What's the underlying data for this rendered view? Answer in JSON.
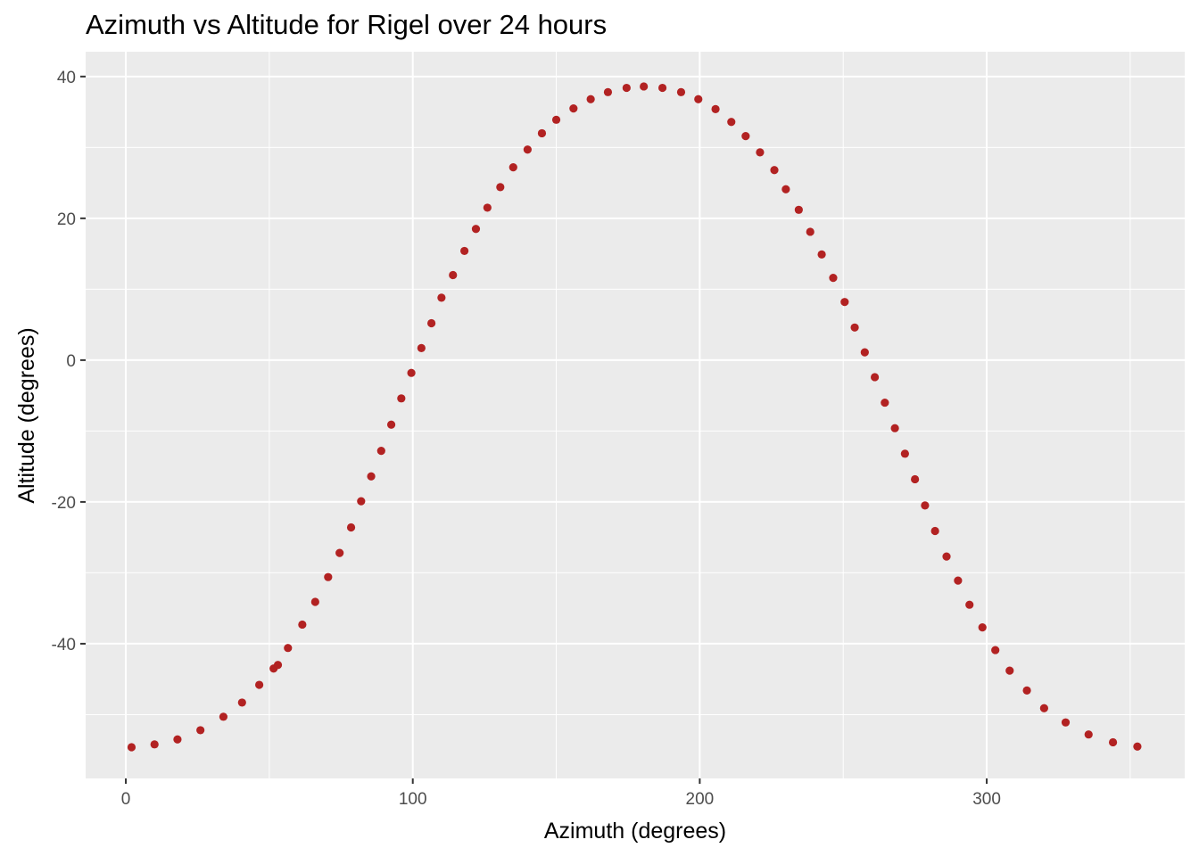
{
  "chart_data": {
    "type": "scatter",
    "title": "Azimuth vs Altitude for Rigel over 24 hours",
    "xlabel": "Azimuth (degrees)",
    "ylabel": "Altitude (degrees)",
    "xlim": [
      -14,
      369
    ],
    "ylim": [
      -59,
      43.5
    ],
    "x_ticks": [
      0,
      100,
      200,
      300
    ],
    "y_ticks": [
      -40,
      -20,
      0,
      20,
      40
    ],
    "x_tick_labels": [
      "0",
      "100",
      "200",
      "300"
    ],
    "y_tick_labels": [
      "-40",
      "-20",
      "0",
      "20",
      "40"
    ],
    "grid": true,
    "legend": "none",
    "colors": {
      "panel": "#ebebeb",
      "grid": "#ffffff",
      "point": "#b22222"
    },
    "points": [
      [
        2,
        -54.6
      ],
      [
        10,
        -54.2
      ],
      [
        18,
        -53.5
      ],
      [
        26,
        -52.2
      ],
      [
        34,
        -50.3
      ],
      [
        40.5,
        -48.3
      ],
      [
        46.5,
        -45.8
      ],
      [
        51.5,
        -43.5
      ],
      [
        53,
        -43.0
      ],
      [
        56.5,
        -40.6
      ],
      [
        61.5,
        -37.3
      ],
      [
        66,
        -34.1
      ],
      [
        70.5,
        -30.6
      ],
      [
        74.5,
        -27.2
      ],
      [
        78.5,
        -23.6
      ],
      [
        82,
        -19.9
      ],
      [
        85.5,
        -16.4
      ],
      [
        89,
        -12.8
      ],
      [
        92.5,
        -9.1
      ],
      [
        96,
        -5.4
      ],
      [
        99.5,
        -1.8
      ],
      [
        103,
        1.7
      ],
      [
        106.5,
        5.2
      ],
      [
        110,
        8.8
      ],
      [
        114,
        12.0
      ],
      [
        118,
        15.4
      ],
      [
        122,
        18.5
      ],
      [
        126,
        21.5
      ],
      [
        130.5,
        24.4
      ],
      [
        135,
        27.2
      ],
      [
        140,
        29.7
      ],
      [
        145,
        32.0
      ],
      [
        150,
        33.9
      ],
      [
        156,
        35.5
      ],
      [
        162,
        36.8
      ],
      [
        168,
        37.8
      ],
      [
        174.5,
        38.4
      ],
      [
        180.5,
        38.6
      ],
      [
        187,
        38.4
      ],
      [
        193.5,
        37.8
      ],
      [
        199.5,
        36.8
      ],
      [
        205.5,
        35.4
      ],
      [
        211,
        33.6
      ],
      [
        216,
        31.6
      ],
      [
        221,
        29.3
      ],
      [
        226,
        26.8
      ],
      [
        230,
        24.1
      ],
      [
        234.5,
        21.2
      ],
      [
        238.5,
        18.1
      ],
      [
        242.5,
        14.9
      ],
      [
        246.5,
        11.6
      ],
      [
        250.5,
        8.2
      ],
      [
        254,
        4.6
      ],
      [
        257.5,
        1.1
      ],
      [
        261,
        -2.4
      ],
      [
        264.5,
        -6.0
      ],
      [
        268,
        -9.6
      ],
      [
        271.5,
        -13.2
      ],
      [
        275,
        -16.8
      ],
      [
        278.5,
        -20.5
      ],
      [
        282,
        -24.1
      ],
      [
        286,
        -27.7
      ],
      [
        290,
        -31.1
      ],
      [
        294,
        -34.5
      ],
      [
        298.5,
        -37.7
      ],
      [
        303,
        -40.9
      ],
      [
        308,
        -43.8
      ],
      [
        314,
        -46.6
      ],
      [
        320,
        -49.1
      ],
      [
        327.5,
        -51.1
      ],
      [
        335.5,
        -52.8
      ],
      [
        344,
        -53.9
      ],
      [
        352.5,
        -54.5
      ]
    ]
  }
}
